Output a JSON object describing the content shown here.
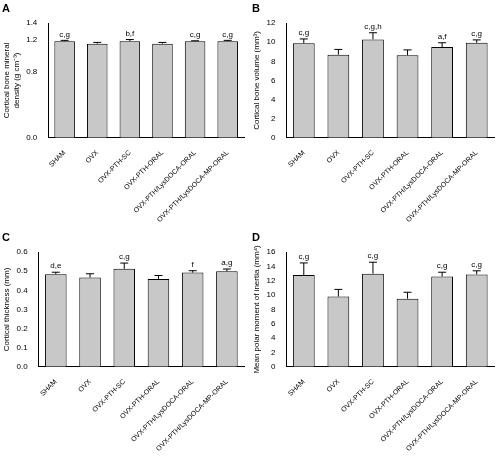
{
  "chart_data": [
    {
      "type": "bar",
      "title": "A",
      "y_label": [
        "Cortical bone mineral",
        "density (g cm⁻³)"
      ],
      "categories": [
        "SHAM",
        "OVX",
        "OVX-PTH-SC",
        "OVX-PTH-ORAL",
        "OVX-PTH/LysDOCA-ORAL",
        "OVX-PTH/LysDOCA-MP-ORAL"
      ],
      "values": [
        1.18,
        1.15,
        1.18,
        1.15,
        1.18,
        1.18
      ],
      "errors": [
        0.01,
        0.015,
        0.02,
        0.015,
        0.005,
        0.01
      ],
      "annotations": [
        "c,g",
        null,
        "b,f",
        null,
        "c,g",
        "c,g"
      ],
      "color": "#c8c8c8",
      "ylim": [
        0,
        1.4
      ],
      "yticks": [
        {
          "value": 0,
          "label": "0.0"
        },
        0.8,
        1.2,
        1.4
      ],
      "grid": false
    },
    {
      "type": "bar",
      "title": "B",
      "y_label": "Cortical bone volume (mm³)",
      "categories": [
        "SHAM",
        "OVX",
        "OVX-PTH-SC",
        "OVX-PTH-ORAL",
        "OVX-PTH/LysDOCA-ORAL",
        "OVX-PTH/LysDOCA-MP-ORAL"
      ],
      "values": [
        9.9,
        8.7,
        10.3,
        8.65,
        9.5,
        9.95
      ],
      "errors": [
        0.45,
        0.55,
        0.7,
        0.55,
        0.45,
        0.3
      ],
      "annotations": [
        "c,g",
        null,
        "c,g,h",
        null,
        "a,f",
        "c,g"
      ],
      "color": "#c8c8c8",
      "ylim": [
        0,
        12
      ],
      "yticks": [
        0,
        2,
        4,
        6,
        8,
        10,
        12
      ],
      "grid": false
    },
    {
      "type": "bar",
      "title": "C",
      "y_label": "Cortical thickness (mm)",
      "categories": [
        "SHAM",
        "OVX",
        "OVX-PTH-SC",
        "OVX-PTH-ORAL",
        "OVX-PTH/LysDOCA-ORAL",
        "OVX-PTH/LysDOCA-MP-ORAL"
      ],
      "values": [
        0.485,
        0.467,
        0.513,
        0.46,
        0.493,
        0.5
      ],
      "errors": [
        0.01,
        0.02,
        0.03,
        0.018,
        0.01,
        0.012
      ],
      "annotations": [
        "d,e",
        null,
        "c,g",
        null,
        "f",
        "a,g"
      ],
      "color": "#c8c8c8",
      "ylim": [
        0,
        0.6
      ],
      "yticks": [
        {
          "value": 0,
          "label": "0.0"
        },
        0.1,
        0.2,
        0.3,
        0.4,
        0.5,
        0.6
      ],
      "grid": false
    },
    {
      "type": "bar",
      "title": "D",
      "y_label": "Mean polar moment of inertia (mm⁴)",
      "categories": [
        "SHAM",
        "OVX",
        "OVX-PTH-SC",
        "OVX-PTH-ORAL",
        "OVX-PTH/LysDOCA-ORAL",
        "OVX-PTH/LysDOCA-MP-ORAL"
      ],
      "values": [
        12.8,
        9.8,
        13.0,
        9.5,
        12.6,
        12.9
      ],
      "errors": [
        1.7,
        1.0,
        1.6,
        0.9,
        0.6,
        0.5
      ],
      "annotations": [
        "c,g",
        null,
        "c,g",
        null,
        "c,g",
        "c,g"
      ],
      "color": "#c8c8c8",
      "ylim": [
        0,
        16
      ],
      "yticks": [
        0,
        2,
        4,
        6,
        8,
        10,
        12,
        14,
        16
      ],
      "grid": false
    }
  ]
}
